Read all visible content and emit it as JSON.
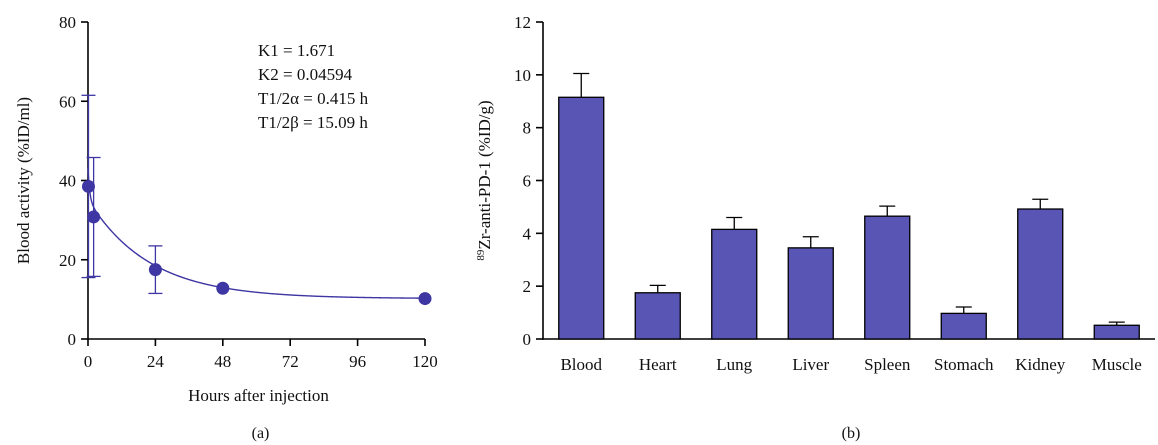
{
  "colors": {
    "accent": "#5a56b0",
    "bar_fill": "#5955b4",
    "marker": "#3d36a3",
    "curve": "#3d36a3",
    "axis": "#000000"
  },
  "chart_data": [
    {
      "type": "scatter",
      "panel_label": "(a)",
      "xlabel": "Hours after injection",
      "ylabel": "Blood activity (%ID/ml)",
      "xlim": [
        0,
        120
      ],
      "ylim": [
        0,
        80
      ],
      "x_ticks": [
        0,
        24,
        48,
        72,
        96,
        120
      ],
      "y_ticks": [
        0,
        20,
        40,
        60,
        80
      ],
      "points": [
        {
          "x": 0.17,
          "y": 38.5,
          "err": 23
        },
        {
          "x": 2,
          "y": 30.8,
          "err": 15
        },
        {
          "x": 24,
          "y": 17.5,
          "err": 6
        },
        {
          "x": 48,
          "y": 12.8,
          "err": 0
        },
        {
          "x": 120,
          "y": 10.2,
          "err": 0
        }
      ],
      "fit": {
        "model": "two-phase decay",
        "plateau": 10.2,
        "span_fast": 8.0,
        "k_fast": 1.671,
        "span_slow": 25.0,
        "k_slow": 0.04594
      },
      "annotations": [
        "K1 = 1.671",
        "K2 = 0.04594",
        "T1/2α = 0.415 h",
        "T1/2β = 15.09 h"
      ],
      "legend": "none",
      "grid": false
    },
    {
      "type": "bar",
      "panel_label": "(b)",
      "ylabel_sup": "89",
      "ylabel": "Zr-anti-PD-1 (%ID/g)",
      "ylim": [
        0,
        12
      ],
      "y_ticks": [
        0,
        2,
        4,
        6,
        8,
        10,
        12
      ],
      "categories": [
        "Blood",
        "Heart",
        "Lung",
        "Liver",
        "Spleen",
        "Stomach",
        "Kidney",
        "Muscle"
      ],
      "values": [
        9.15,
        1.75,
        4.15,
        3.45,
        4.65,
        0.97,
        4.92,
        0.52
      ],
      "errors": [
        0.9,
        0.28,
        0.45,
        0.42,
        0.38,
        0.24,
        0.37,
        0.12
      ],
      "legend": "none",
      "grid": false
    }
  ]
}
